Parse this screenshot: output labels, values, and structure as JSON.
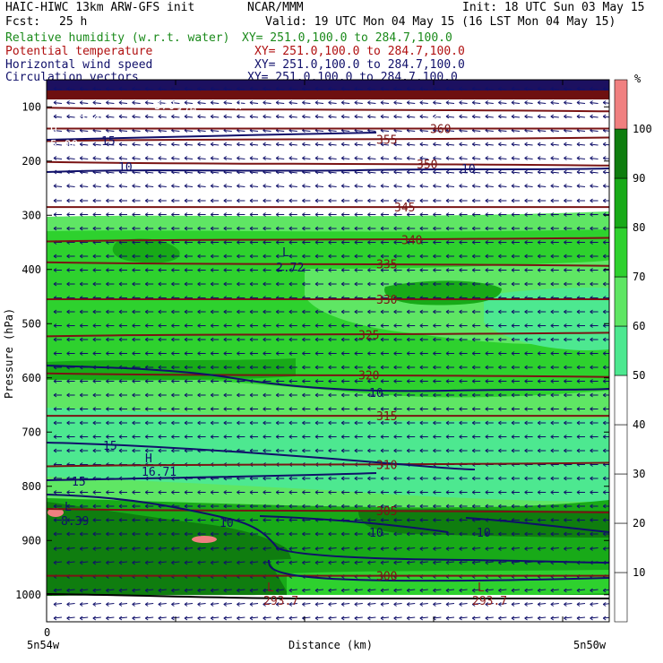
{
  "header": {
    "model": "HAIC-HIWC 13km ARW-GFS init",
    "org": "NCAR/MMM",
    "init": "Init: 18 UTC Sun 03 May 15",
    "fcst_label": "Fcst:",
    "fcst_value": "25 h",
    "valid": "Valid: 19 UTC Mon 04 May 15 (16 LST Mon 04 May 15)",
    "fields": [
      {
        "name": "Relative humidity (w.r.t. water)",
        "xy": "XY= 251.0,100.0 to 284.7,100.0",
        "color": "#1a8a1a"
      },
      {
        "name": "Potential temperature",
        "xy": "XY= 251.0,100.0 to 284.7,100.0",
        "color": "#b01010"
      },
      {
        "name": "Horizontal wind speed",
        "xy": "XY= 251.0,100.0 to 284.7,100.0",
        "color": "#10106a"
      },
      {
        "name": "Circulation vectors",
        "xy": "XY= 251.0,100.0 to 284.7,100.0",
        "color": "#10106a"
      }
    ]
  },
  "chart_data": {
    "type": "heatmap",
    "ylabel": "Pressure (hPa)",
    "xlabel": "Distance (km)",
    "x_left_label": "5n54w",
    "x_right_label": "5n50w",
    "x_zero_label": "0",
    "y_ticks": [
      100,
      200,
      300,
      400,
      500,
      600,
      700,
      800,
      900,
      1000
    ],
    "y_range": [
      50,
      1050
    ],
    "colorbar": {
      "unit": "%",
      "levels": [
        10,
        20,
        30,
        40,
        50,
        60,
        70,
        80,
        90,
        100
      ],
      "colors": [
        "#ffffff",
        "#ffffff",
        "#ffffff",
        "#ffffff",
        "#ffffff",
        "#4de890",
        "#5fe664",
        "#2ed12e",
        "#18aa18",
        "#0f7d0f",
        "#f08080"
      ]
    },
    "theta_labels": [
      370,
      360,
      355,
      350,
      345,
      340,
      335,
      330,
      325,
      320,
      315,
      310,
      305,
      300
    ],
    "theta_levels_hpa": [
      105,
      140,
      160,
      205,
      285,
      345,
      390,
      455,
      520,
      595,
      670,
      760,
      845,
      965
    ],
    "wind_labels": [
      "10",
      "15",
      "10",
      "15",
      "15",
      "10",
      "10",
      "10",
      "10"
    ],
    "extrema": [
      {
        "type": "L",
        "value": "2.72"
      },
      {
        "type": "H",
        "value": "16.71"
      },
      {
        "type": "L",
        "value": "8.39"
      },
      {
        "type": "L",
        "value": "293.7"
      },
      {
        "type": "L",
        "value": "293.7"
      },
      {
        "type": "H",
        "value": "5.00"
      }
    ],
    "top_labels": [
      "360",
      "370",
      "360",
      "H"
    ]
  }
}
